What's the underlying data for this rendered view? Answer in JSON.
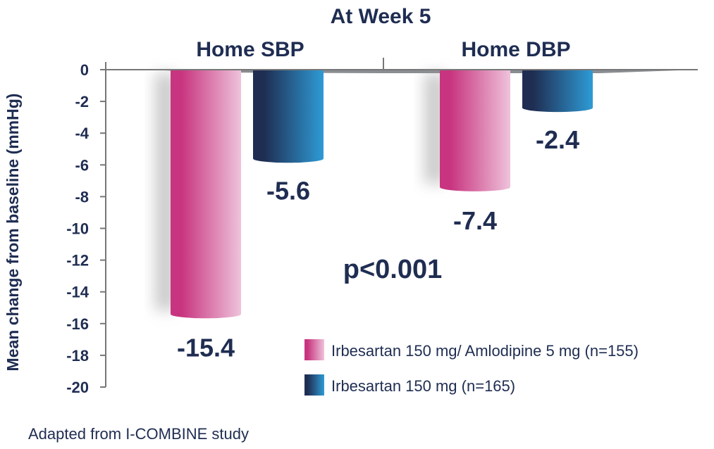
{
  "chart_data": {
    "type": "bar",
    "title": "At Week 5",
    "categories": [
      "Home SBP",
      "Home DBP"
    ],
    "ylabel": "Mean change from baseline (mmHg)",
    "xlabel": "",
    "ylim": [
      -20,
      0
    ],
    "yticks": [
      0,
      -2,
      -4,
      -6,
      -8,
      -10,
      -12,
      -14,
      -16,
      -18,
      -20
    ],
    "grid": false,
    "legend_placement": "bottom-right",
    "series": [
      {
        "name": "Irbesartan 150 mg/ Amlodipine 5 mg (n=155)",
        "values": [
          -15.4,
          -7.4
        ],
        "labels": [
          "-15.4",
          "-7.4"
        ],
        "color_from": "#c8347f",
        "color_to": "#eec3db"
      },
      {
        "name": "Irbesartan 150 mg (n=165)",
        "values": [
          -5.6,
          -2.4
        ],
        "labels": [
          "-5.6",
          "-2.4"
        ],
        "color_from": "#1f2d52",
        "color_to": "#2e9bd6"
      }
    ],
    "annotations": [
      "p<0.001"
    ],
    "text_color": "#1f2d52"
  },
  "footnote": "Adapted from I-COMBINE study"
}
